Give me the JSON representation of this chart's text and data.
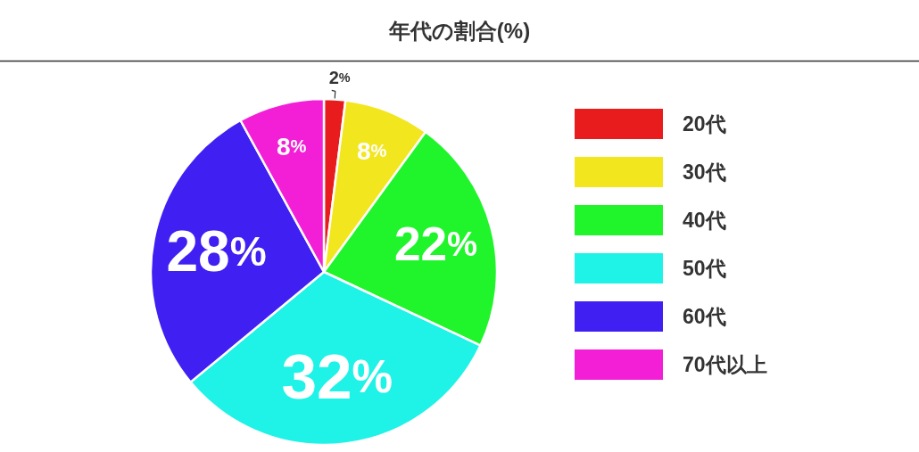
{
  "chart_data": {
    "type": "pie",
    "title": "年代の割合(%)",
    "categories": [
      "20代",
      "30代",
      "40代",
      "50代",
      "60代",
      "70代以上"
    ],
    "values": [
      2,
      8,
      22,
      32,
      28,
      8
    ],
    "colors": [
      "#e81c1c",
      "#f2e61e",
      "#1ff52a",
      "#1ff2e6",
      "#3f1ff2",
      "#f21fd6"
    ],
    "value_labels": [
      "2%",
      "8%",
      "22%",
      "32%",
      "28%",
      "8%"
    ],
    "legend": "right"
  }
}
